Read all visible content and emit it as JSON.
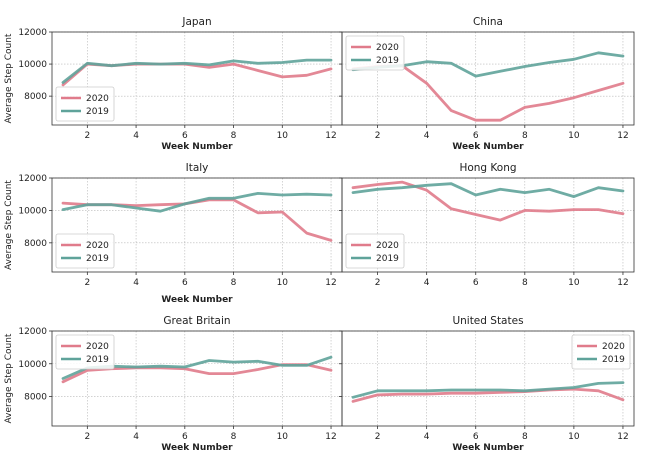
{
  "chart_data": [
    {
      "type": "line",
      "title": "Japan",
      "xlabel": "Week Number",
      "ylabel": "Average Step Count",
      "x": [
        1,
        2,
        3,
        4,
        5,
        6,
        7,
        8,
        9,
        10,
        11,
        12
      ],
      "xticks": [
        2,
        4,
        6,
        8,
        10,
        12
      ],
      "yticks": [
        8000,
        10000,
        12000
      ],
      "ylim": [
        6200,
        12000
      ],
      "grid": true,
      "legend": "bottom-left",
      "series": [
        {
          "name": "2020",
          "color": "#e07b8b",
          "values": [
            8700,
            10000,
            9900,
            10000,
            10000,
            10000,
            9800,
            10000,
            9600,
            9200,
            9300,
            9700
          ]
        },
        {
          "name": "2019",
          "color": "#5fa39a",
          "values": [
            8850,
            10050,
            9900,
            10050,
            10000,
            10050,
            9950,
            10200,
            10050,
            10100,
            10250,
            10250
          ]
        }
      ]
    },
    {
      "type": "line",
      "title": "China",
      "xlabel": "Week Number",
      "ylabel": "",
      "x": [
        1,
        2,
        3,
        4,
        5,
        6,
        7,
        8,
        9,
        10,
        11,
        12
      ],
      "xticks": [
        2,
        4,
        6,
        8,
        10,
        12
      ],
      "yticks": [
        8000,
        10000,
        12000
      ],
      "ylim": [
        6200,
        12000
      ],
      "grid": true,
      "legend": "top-left",
      "series": [
        {
          "name": "2020",
          "color": "#e07b8b",
          "values": [
            9700,
            9850,
            9900,
            8800,
            7100,
            6500,
            6500,
            7300,
            7550,
            7900,
            8350,
            8800
          ]
        },
        {
          "name": "2019",
          "color": "#5fa39a",
          "values": [
            9650,
            9800,
            9900,
            10150,
            10050,
            9250,
            9550,
            9850,
            10100,
            10300,
            10700,
            10500
          ]
        }
      ]
    },
    {
      "type": "line",
      "title": "Italy",
      "xlabel": "Week Number",
      "ylabel": "Average Step Count",
      "x": [
        1,
        2,
        3,
        4,
        5,
        6,
        7,
        8,
        9,
        10,
        11,
        12
      ],
      "xticks": [
        2,
        4,
        6,
        8,
        10,
        12
      ],
      "yticks": [
        8000,
        10000,
        12000
      ],
      "ylim": [
        6200,
        12000
      ],
      "grid": true,
      "legend": "bottom-left",
      "series": [
        {
          "name": "2020",
          "color": "#e07b8b",
          "values": [
            10450,
            10350,
            10350,
            10300,
            10350,
            10400,
            10650,
            10650,
            9850,
            9900,
            8600,
            8150
          ]
        },
        {
          "name": "2019",
          "color": "#5fa39a",
          "values": [
            10050,
            10350,
            10350,
            10150,
            9950,
            10400,
            10750,
            10750,
            11050,
            10950,
            11000,
            10950
          ]
        }
      ]
    },
    {
      "type": "line",
      "title": "Hong Kong",
      "xlabel": "",
      "ylabel": "",
      "x": [
        1,
        2,
        3,
        4,
        5,
        6,
        7,
        8,
        9,
        10,
        11,
        12
      ],
      "xticks": [
        2,
        4,
        6,
        8,
        10,
        12
      ],
      "yticks": [
        8000,
        10000,
        12000
      ],
      "ylim": [
        6200,
        12000
      ],
      "grid": true,
      "legend": "bottom-left",
      "series": [
        {
          "name": "2020",
          "color": "#e07b8b",
          "values": [
            11400,
            11600,
            11750,
            11250,
            10100,
            9750,
            9400,
            10000,
            9950,
            10050,
            10050,
            9800
          ]
        },
        {
          "name": "2019",
          "color": "#5fa39a",
          "values": [
            11100,
            11300,
            11400,
            11550,
            11650,
            10950,
            11300,
            11100,
            11300,
            10850,
            11400,
            11200
          ]
        }
      ]
    },
    {
      "type": "line",
      "title": "Great Britain",
      "xlabel": "Week Number",
      "ylabel": "Average Step Count",
      "x": [
        1,
        2,
        3,
        4,
        5,
        6,
        7,
        8,
        9,
        10,
        11,
        12
      ],
      "xticks": [
        2,
        4,
        6,
        8,
        10,
        12
      ],
      "yticks": [
        8000,
        10000,
        12000
      ],
      "ylim": [
        6200,
        12000
      ],
      "grid": true,
      "legend": "top-left",
      "series": [
        {
          "name": "2020",
          "color": "#e07b8b",
          "values": [
            8900,
            9600,
            9700,
            9750,
            9750,
            9700,
            9400,
            9400,
            9650,
            9950,
            9950,
            9600
          ]
        },
        {
          "name": "2019",
          "color": "#5fa39a",
          "values": [
            9100,
            9750,
            9850,
            9800,
            9850,
            9800,
            10200,
            10100,
            10150,
            9900,
            9900,
            10400
          ]
        }
      ]
    },
    {
      "type": "line",
      "title": "United States",
      "xlabel": "Week Number",
      "ylabel": "",
      "x": [
        1,
        2,
        3,
        4,
        5,
        6,
        7,
        8,
        9,
        10,
        11,
        12
      ],
      "xticks": [
        2,
        4,
        6,
        8,
        10,
        12
      ],
      "yticks": [
        8000,
        10000,
        12000
      ],
      "ylim": [
        6200,
        12000
      ],
      "grid": true,
      "legend": "top-right",
      "series": [
        {
          "name": "2020",
          "color": "#e07b8b",
          "values": [
            7700,
            8100,
            8150,
            8150,
            8200,
            8200,
            8250,
            8300,
            8400,
            8450,
            8350,
            7800
          ]
        },
        {
          "name": "2019",
          "color": "#5fa39a",
          "values": [
            7950,
            8350,
            8350,
            8350,
            8400,
            8400,
            8400,
            8350,
            8450,
            8550,
            8800,
            8850
          ]
        }
      ]
    }
  ]
}
